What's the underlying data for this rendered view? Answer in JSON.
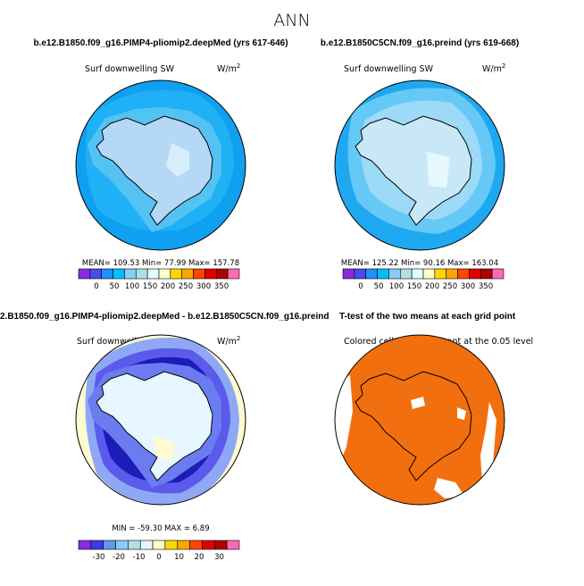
{
  "main_title": "ANN",
  "panels": [
    {
      "title": "b.e12.B1850.f09_g16.PIMP4-pliomip2.deepMed (yrs 617-646)",
      "var_label": "Surf downwelling SW",
      "units_label": "W/m",
      "units_sup": "2",
      "stats_line": "MEAN= 109.53  Min=  77.99  Max= 157.78"
    },
    {
      "title": "b.e12.B1850C5CN.f09_g16.preind (yrs 619-668)",
      "var_label": "Surf downwelling SW",
      "units_label": "W/m",
      "units_sup": "2",
      "stats_line": "MEAN= 125.22  Min=  90.16  Max= 163.04"
    },
    {
      "title": "2.B1850.f09_g16.PIMP4-pliomip2.deepMed - b.e12.B1850C5CN.f09_g16.preind",
      "var_label": "Surf downwelling SW",
      "units_label": "W/m",
      "units_sup": "2",
      "stats_line": "MIN = -59.30 MAX =  6.89"
    },
    {
      "title": "T-test of the two means at each grid point",
      "var_label": "Colored cells are significant at the 0.05 level"
    }
  ],
  "colors": {
    "cb_abs": [
      "#8a2be2",
      "#4a4af0",
      "#1e90ff",
      "#00bfff",
      "#87cefa",
      "#b0e0e6",
      "#e0ffff",
      "#ffffcc",
      "#ffd700",
      "#ffa500",
      "#ff4500",
      "#e00000",
      "#b00000",
      "#ff69b4"
    ],
    "cb_diff": [
      "#8a2be2",
      "#3a3aee",
      "#6495ed",
      "#87cefa",
      "#b0e0e6",
      "#e6f7ff",
      "#ffffcc",
      "#ffd700",
      "#ffa500",
      "#ff4500",
      "#e00000",
      "#b00000",
      "#ff69b4"
    ],
    "ocean_a": "#1fa8f2",
    "ocean_b": "#66c9f5",
    "ice_a": "#b4d8f5",
    "ice_b": "#c8e8f8",
    "diff_dark": "#1c1cb8",
    "diff_mid": "#5a5aec",
    "diff_light": "#a8b8f8",
    "ttest": "#f26f10"
  },
  "chart_data": [
    {
      "type": "heatmap",
      "title": "b.e12.B1850.f09_g16.PIMP4-pliomip2.deepMed (yrs 617-646)",
      "variable": "Surf downwelling SW",
      "units": "W/m2",
      "mean": 109.53,
      "min": 77.99,
      "max": 157.78,
      "colorbar_ticks": [
        "0",
        "50",
        "100",
        "150",
        "200",
        "250",
        "300",
        "350"
      ]
    },
    {
      "type": "heatmap",
      "title": "b.e12.B1850C5CN.f09_g16.preind (yrs 619-668)",
      "variable": "Surf downwelling SW",
      "units": "W/m2",
      "mean": 125.22,
      "min": 90.16,
      "max": 163.04,
      "colorbar_ticks": [
        "0",
        "50",
        "100",
        "150",
        "200",
        "250",
        "300",
        "350"
      ]
    },
    {
      "type": "heatmap",
      "title": "2.B1850.f09_g16.PIMP4-pliomip2.deepMed - b.e12.B1850C5CN.f09_g16.preind",
      "variable": "Surf downwelling SW",
      "units": "W/m2",
      "min": -59.3,
      "max": 6.89,
      "colorbar_ticks": [
        "-30",
        "-20",
        "-10",
        "0",
        "10",
        "20",
        "30"
      ]
    },
    {
      "type": "heatmap",
      "title": "T-test of the two means at each grid point",
      "note": "Colored cells are significant at the 0.05 level"
    }
  ]
}
